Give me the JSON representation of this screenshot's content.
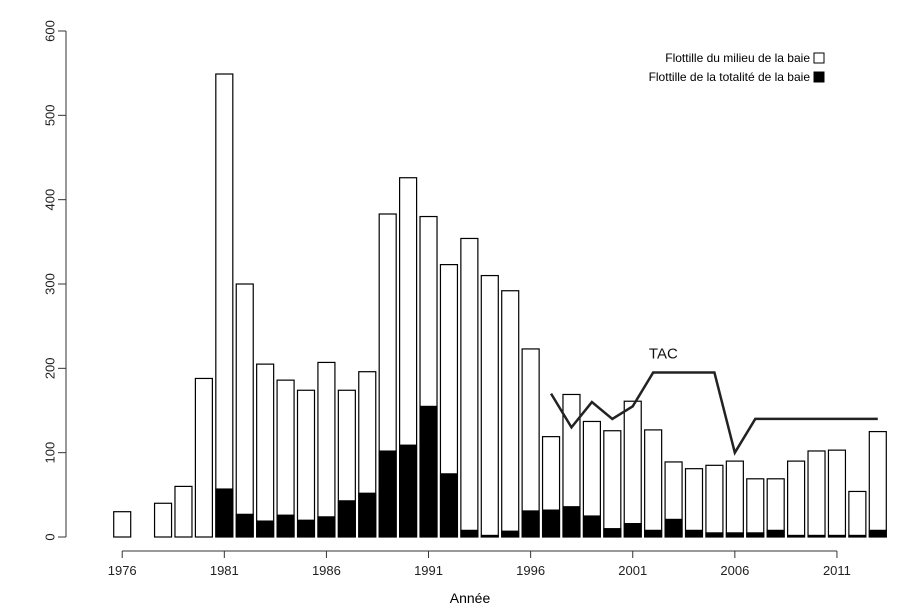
{
  "chart_data": {
    "type": "bar",
    "title": "",
    "xlabel": "Année",
    "ylabel": "",
    "ylim": [
      0,
      600
    ],
    "yticks": [
      0,
      100,
      200,
      300,
      400,
      500,
      600
    ],
    "xticks": [
      1976,
      1981,
      1986,
      1991,
      1996,
      2001,
      2006,
      2011
    ],
    "x": [
      1976,
      1977,
      1978,
      1979,
      1980,
      1981,
      1982,
      1983,
      1984,
      1985,
      1986,
      1987,
      1988,
      1989,
      1990,
      1991,
      1992,
      1993,
      1994,
      1995,
      1996,
      1997,
      1998,
      1999,
      2000,
      2001,
      2002,
      2003,
      2004,
      2005,
      2006,
      2007,
      2008,
      2009,
      2010,
      2011,
      2012,
      2013
    ],
    "series": [
      {
        "name": "Flottille du milieu de la baie",
        "color": "#ffffff",
        "values": [
          30,
          0,
          40,
          60,
          188,
          549,
          300,
          205,
          186,
          174,
          207,
          174,
          196,
          383,
          426,
          380,
          323,
          354,
          310,
          292,
          223,
          119,
          169,
          137,
          126,
          161,
          127,
          89,
          81,
          85,
          90,
          69,
          69,
          90,
          102,
          103,
          54,
          125
        ]
      },
      {
        "name": "Flottille de la totalité de la baie",
        "color": "#000000",
        "values": [
          0,
          0,
          0,
          0,
          0,
          57,
          27,
          19,
          26,
          20,
          24,
          43,
          52,
          102,
          109,
          155,
          75,
          8,
          2,
          7,
          31,
          32,
          36,
          25,
          10,
          16,
          8,
          21,
          8,
          5,
          5,
          5,
          8,
          2,
          2,
          2,
          2,
          8
        ]
      }
    ],
    "tac": {
      "label": "TAC",
      "x": [
        1997,
        1998,
        1999,
        2000,
        2001,
        2002,
        2003,
        2004,
        2005,
        2006,
        2007,
        2008,
        2009,
        2010,
        2011,
        2012,
        2013
      ],
      "values": [
        170,
        130,
        160,
        140,
        155,
        195,
        195,
        195,
        195,
        100,
        140,
        140,
        140,
        140,
        140,
        140,
        140
      ]
    },
    "legend_position": "top-right",
    "grid": false
  }
}
